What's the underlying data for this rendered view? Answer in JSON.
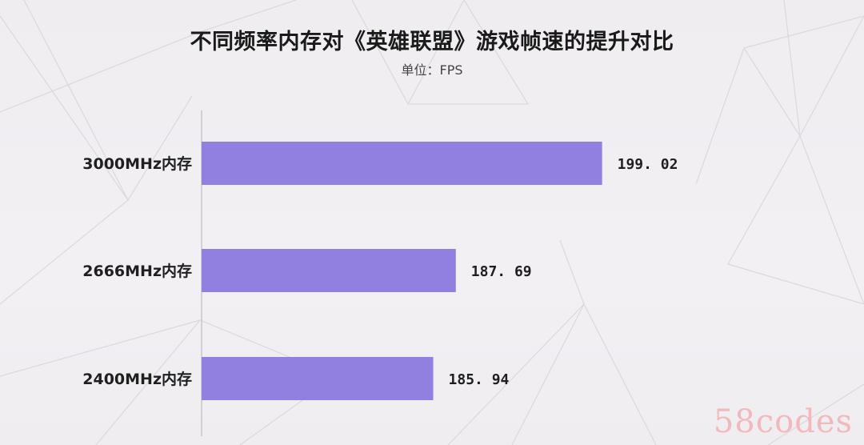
{
  "chart_data": {
    "type": "bar",
    "orientation": "horizontal",
    "title": "不同频率内存对《英雄联盟》游戏帧速的提升对比",
    "subtitle": "单位：FPS",
    "categories": [
      "3000MHz内存",
      "2666MHz内存",
      "2400MHz内存"
    ],
    "values": [
      199.02,
      187.69,
      185.94
    ],
    "value_labels": [
      "199. 02",
      "187. 69",
      "185. 94"
    ],
    "xlim": [
      168,
      204
    ],
    "bar_color": "#9180e0",
    "grid": false,
    "legend": "none"
  },
  "watermark": "58codes"
}
